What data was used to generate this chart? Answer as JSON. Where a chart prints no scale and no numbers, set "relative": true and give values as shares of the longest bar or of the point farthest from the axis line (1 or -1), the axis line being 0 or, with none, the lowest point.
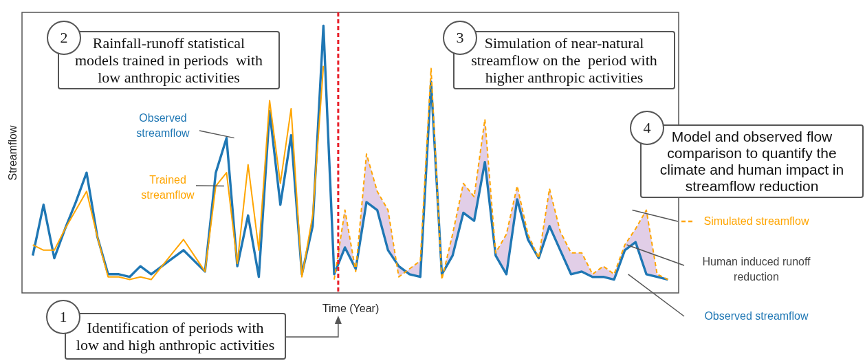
{
  "chart_data": {
    "type": "line",
    "xlabel": "Time (Year)",
    "ylabel": "Streamflow",
    "relative": true,
    "categories": [
      null,
      null,
      null,
      null,
      null,
      null,
      null,
      null,
      null,
      null,
      null,
      null,
      null,
      null,
      null,
      null,
      null,
      null,
      null,
      null,
      null,
      null,
      null,
      null,
      null,
      null,
      null,
      null,
      null,
      null,
      null,
      null,
      null,
      null,
      null,
      null,
      null,
      null,
      null,
      null,
      null,
      null,
      null,
      null,
      null,
      null,
      null,
      null,
      null,
      null,
      null,
      null,
      null,
      null,
      null,
      null,
      null,
      null,
      null,
      null
    ],
    "series": [
      {
        "name": "Observed streamflow",
        "color": "#1f77b4",
        "values": [
          0.14,
          0.33,
          0.13,
          0.24,
          0.34,
          0.45,
          0.21,
          0.07,
          0.07,
          0.06,
          0.1,
          0.07,
          0.1,
          0.13,
          0.16,
          0.12,
          0.08,
          0.45,
          0.58,
          0.1,
          0.29,
          0.06,
          0.68,
          0.33,
          0.59,
          0.07,
          0.25,
          1.0,
          0.07,
          0.17,
          0.09,
          0.34,
          0.31,
          0.16,
          0.1,
          0.07,
          0.06,
          0.79,
          0.07,
          0.14,
          0.3,
          0.27,
          0.49,
          0.14,
          0.07,
          0.35,
          0.2,
          0.13,
          0.25,
          0.16,
          0.07,
          0.08,
          0.06,
          0.06,
          0.05,
          0.16,
          0.19,
          0.07,
          0.06,
          0.05
        ]
      },
      {
        "name": "Trained streamflow",
        "color": "#ffa500",
        "values": [
          0.18,
          0.16,
          0.16,
          0.24,
          0.31,
          0.38,
          0.21,
          0.06,
          0.06,
          0.05,
          0.06,
          0.05,
          0.1,
          0.15,
          0.2,
          0.14,
          0.08,
          0.4,
          0.45,
          0.11,
          0.48,
          0.16,
          0.72,
          0.41,
          0.69,
          0.06,
          0.29,
          0.85,
          null,
          null,
          null,
          null,
          null,
          null,
          null,
          null,
          null,
          null,
          null,
          null,
          null,
          null,
          null,
          null,
          null,
          null,
          null,
          null,
          null,
          null,
          null,
          null,
          null,
          null,
          null,
          null,
          null,
          null,
          null,
          null
        ]
      },
      {
        "name": "Simulated streamflow",
        "color": "#ffa500",
        "line_style": "dashed",
        "values": [
          null,
          null,
          null,
          null,
          null,
          null,
          null,
          null,
          null,
          null,
          null,
          null,
          null,
          null,
          null,
          null,
          null,
          null,
          null,
          null,
          null,
          null,
          null,
          null,
          null,
          null,
          null,
          null,
          0.05,
          0.31,
          0.08,
          0.52,
          0.38,
          0.31,
          0.06,
          0.09,
          0.12,
          0.84,
          0.05,
          0.22,
          0.41,
          0.36,
          0.65,
          0.15,
          0.22,
          0.4,
          0.22,
          0.13,
          0.39,
          0.23,
          0.15,
          0.15,
          0.07,
          0.1,
          0.07,
          0.18,
          0.24,
          0.31,
          0.07,
          0.05
        ],
        "lower": [
          null,
          null,
          null,
          null,
          null,
          null,
          null,
          null,
          null,
          null,
          null,
          null,
          null,
          null,
          null,
          null,
          null,
          null,
          null,
          null,
          null,
          null,
          null,
          null,
          null,
          null,
          null,
          null,
          0.07,
          0.17,
          0.09,
          0.34,
          0.31,
          0.16,
          0.1,
          0.07,
          0.06,
          0.79,
          0.07,
          0.14,
          0.3,
          0.27,
          0.49,
          0.14,
          0.07,
          0.35,
          0.2,
          0.13,
          0.25,
          0.16,
          0.07,
          0.08,
          0.06,
          0.06,
          0.05,
          0.16,
          0.19,
          0.07,
          0.06,
          0.05
        ],
        "upper": [
          null,
          null,
          null,
          null,
          null,
          null,
          null,
          null,
          null,
          null,
          null,
          null,
          null,
          null,
          null,
          null,
          null,
          null,
          null,
          null,
          null,
          null,
          null,
          null,
          null,
          null,
          null,
          null,
          0.05,
          0.31,
          0.08,
          0.52,
          0.38,
          0.31,
          0.06,
          0.09,
          0.12,
          0.84,
          0.05,
          0.22,
          0.41,
          0.36,
          0.65,
          0.15,
          0.22,
          0.4,
          0.22,
          0.13,
          0.39,
          0.23,
          0.15,
          0.15,
          0.07,
          0.1,
          0.07,
          0.18,
          0.24,
          0.31,
          0.07,
          0.05
        ]
      }
    ],
    "annotations": [
      "1",
      "Identification of periods with low and high anthropic activities",
      "2",
      "Rainfall-runoff statistical models trained in periods  with low anthropic activities",
      "3",
      "Simulation of near-natural streamflow on the  period with higher anthropic activities",
      "4",
      "Model and observed flow comparison to quantify the climate and human impact in streamflow reduction",
      "Human induced runoff reduction"
    ]
  }
}
